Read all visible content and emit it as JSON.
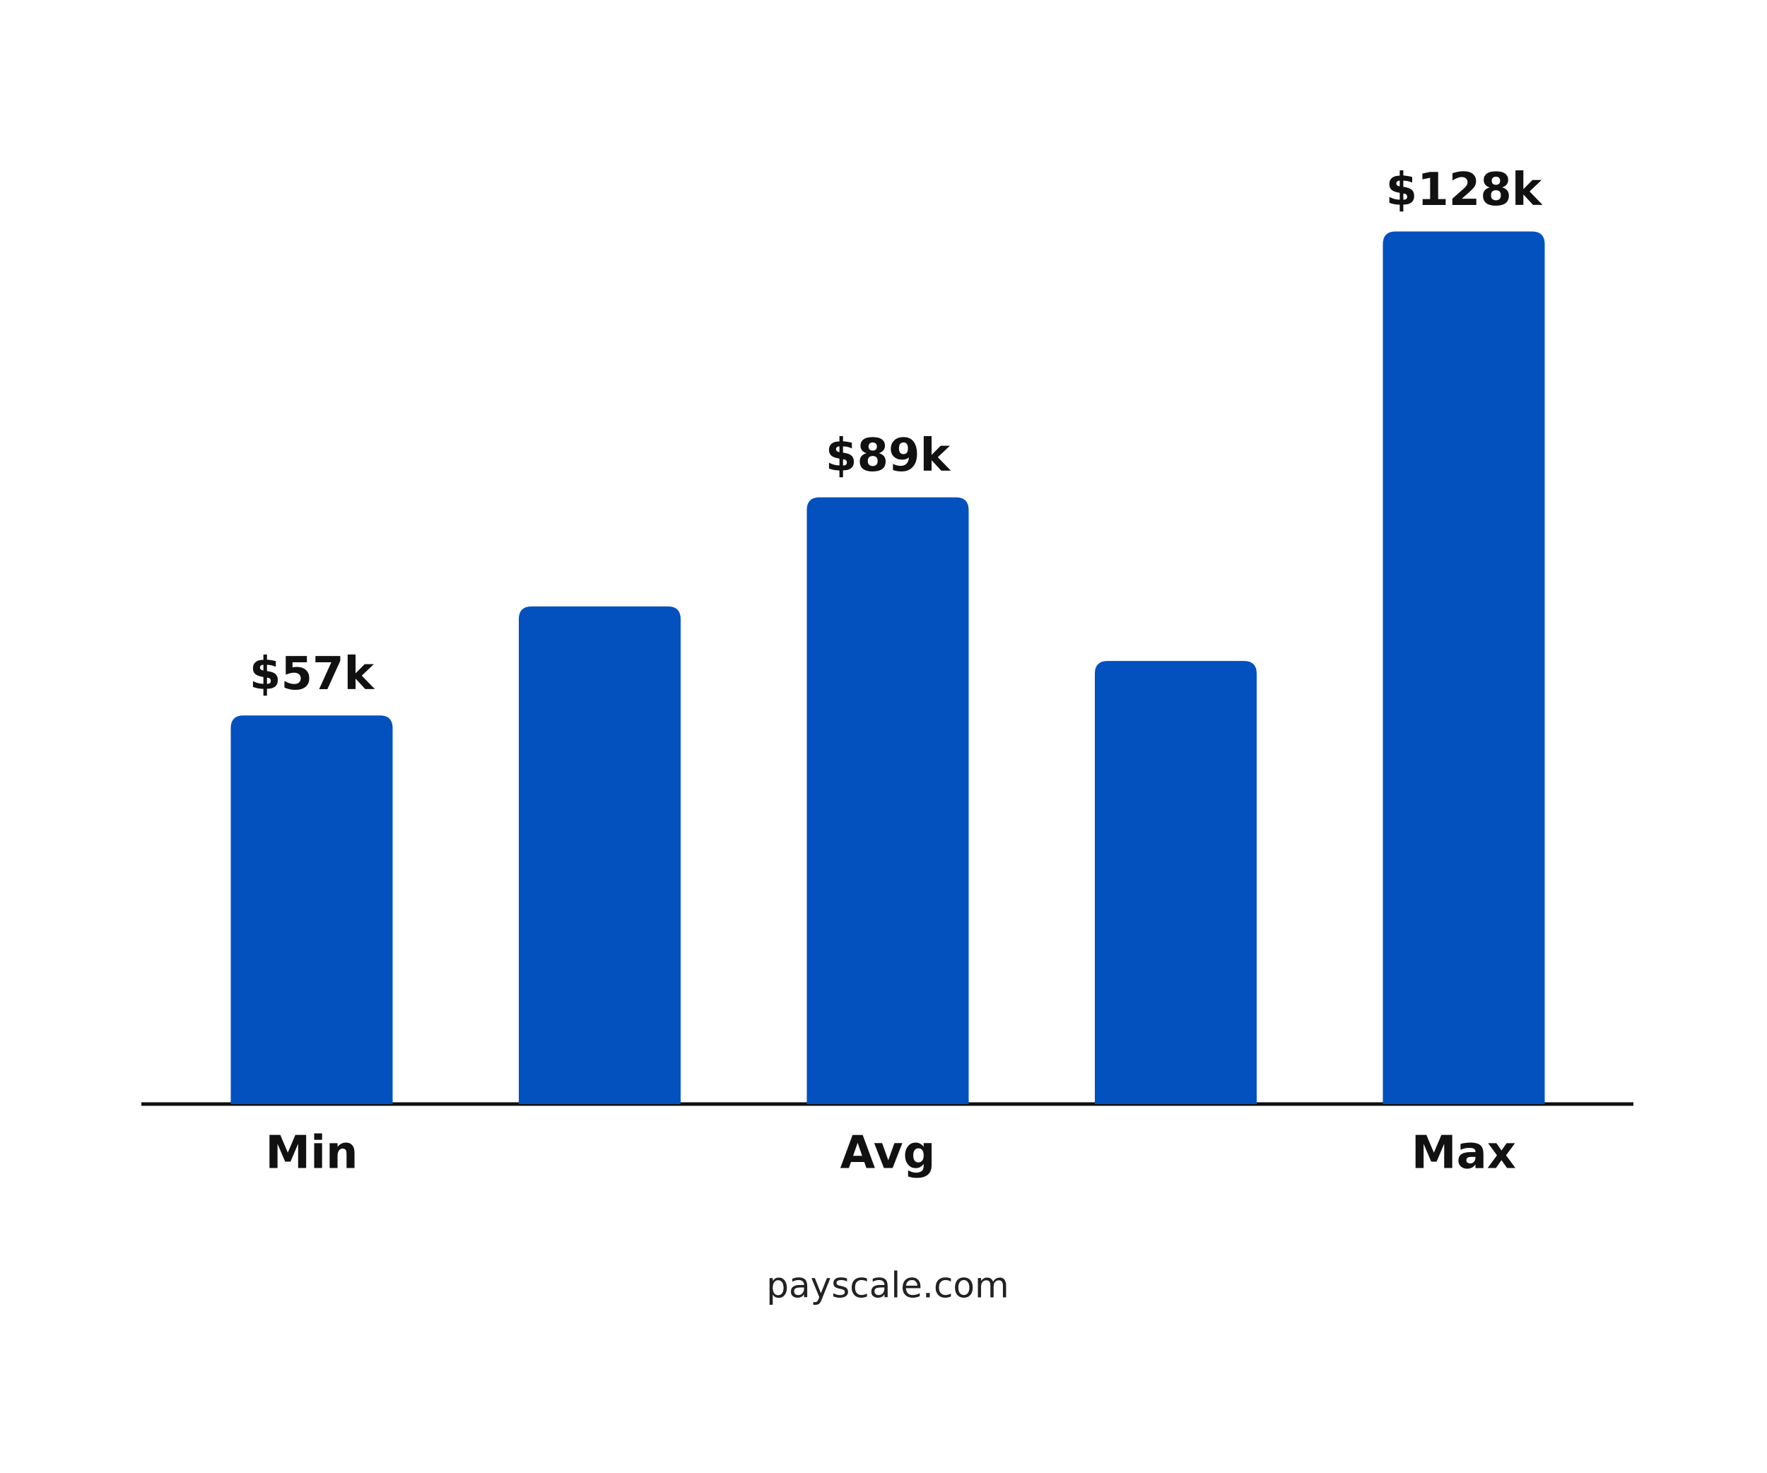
{
  "chart_data": {
    "type": "bar",
    "categories": [
      "Min",
      null,
      "Avg",
      null,
      "Max"
    ],
    "values": [
      57,
      73,
      89,
      65,
      128
    ],
    "value_labels": [
      "$57k",
      null,
      "$89k",
      null,
      "$128k"
    ],
    "color": "#0251bf",
    "ylim": [
      0,
      135
    ],
    "grid": false,
    "source": "payscale.com"
  }
}
